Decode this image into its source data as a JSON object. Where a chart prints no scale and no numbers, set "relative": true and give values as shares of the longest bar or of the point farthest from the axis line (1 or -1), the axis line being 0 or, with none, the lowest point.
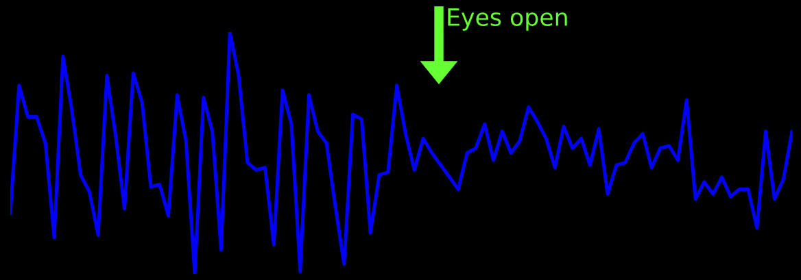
{
  "chart_data": {
    "type": "line",
    "relative": true,
    "categories": [
      null,
      null,
      null,
      null,
      null,
      null,
      null,
      null,
      null,
      null,
      null,
      null,
      null,
      null,
      null,
      null,
      null,
      null,
      null,
      null,
      null,
      null,
      null,
      null,
      null,
      null,
      null,
      null,
      null,
      null,
      null,
      null,
      null,
      null,
      null,
      null,
      null,
      null,
      null,
      null,
      null,
      null,
      null,
      null,
      null,
      null,
      null,
      null,
      null,
      null,
      null,
      null,
      null,
      null,
      null,
      null,
      null,
      null,
      null,
      null,
      null,
      null,
      null,
      null,
      null,
      null,
      null,
      null,
      null,
      null,
      null,
      null,
      null,
      null,
      null,
      null,
      null,
      null,
      null,
      null,
      null,
      null,
      null,
      null,
      null,
      null,
      null,
      null,
      null,
      null
    ],
    "series": [
      {
        "color": "#0000ff",
        "values": [
          0.25,
          0.78,
          0.65,
          0.65,
          0.54,
          0.15,
          0.9,
          0.68,
          0.41,
          0.34,
          0.16,
          0.82,
          0.57,
          0.27,
          0.83,
          0.71,
          0.36,
          0.37,
          0.24,
          0.74,
          0.55,
          0,
          0.73,
          0.59,
          0.1,
          1,
          0.82,
          0.46,
          0.43,
          0.44,
          0.12,
          0.76,
          0.62,
          0.01,
          0.74,
          0.59,
          0.54,
          0.28,
          0.04,
          0.66,
          0.64,
          0.17,
          0.41,
          0.42,
          0.78,
          0.58,
          0.43,
          0.56,
          0.5,
          0.45,
          0.4,
          0.35,
          0.5,
          0.52,
          0.62,
          0.47,
          0.59,
          0.5,
          0.55,
          0.69,
          0.63,
          0.56,
          0.44,
          0.61,
          0.52,
          0.56,
          0.45,
          0.6,
          0.33,
          0.45,
          0.46,
          0.54,
          0.58,
          0.44,
          0.52,
          0.53,
          0.47,
          0.72,
          0.31,
          0.38,
          0.33,
          0.4,
          0.32,
          0.35,
          0.35,
          0.19,
          0.59,
          0.31,
          0.39,
          0.59
        ]
      }
    ],
    "annotations": [
      "Eyes open"
    ]
  }
}
